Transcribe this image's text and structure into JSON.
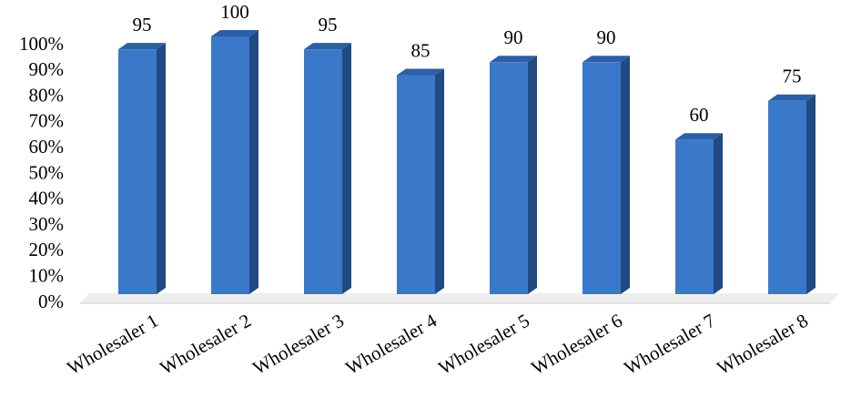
{
  "chart_data": {
    "type": "bar",
    "categories": [
      "Wholesaler 1",
      "Wholesaler 2",
      "Wholesaler 3",
      "Wholesaler 4",
      "Wholesaler 5",
      "Wholesaler 6",
      "Wholesaler 7",
      "Wholesaler 8"
    ],
    "values": [
      95,
      100,
      95,
      85,
      90,
      90,
      60,
      75
    ],
    "color": "#3a78c9",
    "ylim": [
      0,
      100
    ],
    "yticks": [
      {
        "value": 0,
        "label": "0%"
      },
      {
        "value": 10,
        "label": "10%"
      },
      {
        "value": 20,
        "label": "20%"
      },
      {
        "value": 30,
        "label": "30%"
      },
      {
        "value": 40,
        "label": "40%"
      },
      {
        "value": 50,
        "label": "50%"
      },
      {
        "value": 60,
        "label": "60%"
      },
      {
        "value": 70,
        "label": "70%"
      },
      {
        "value": 80,
        "label": "80%"
      },
      {
        "value": 90,
        "label": "90%"
      },
      {
        "value": 100,
        "label": "100%"
      }
    ],
    "grid": false
  }
}
